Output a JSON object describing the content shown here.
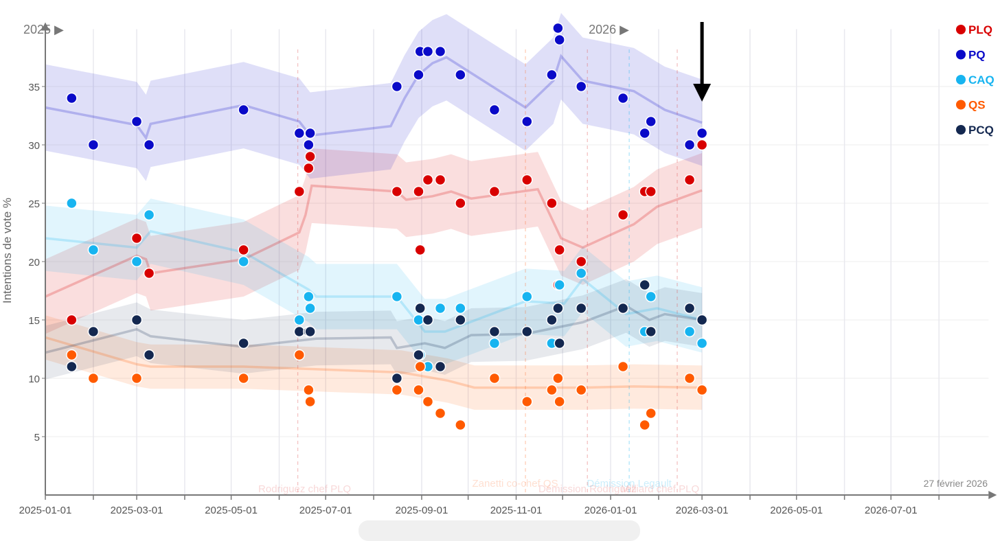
{
  "chart_data": {
    "type": "scatter",
    "title": "",
    "ylabel": "Intentions de vote %",
    "xlabel": "",
    "x_unit": "days since 2025-01-01",
    "xlim": [
      0,
      609
    ],
    "ylim": [
      0,
      40.5
    ],
    "grid": true,
    "legend_position": "top-right",
    "current_date_label": "27 février 2026",
    "year_markers": [
      {
        "x": 0,
        "label": "2025"
      },
      {
        "x": 365,
        "label": "2026"
      }
    ],
    "x_ticks": [
      {
        "x": 0,
        "label": "2025-01-01"
      },
      {
        "x": 59,
        "label": "2025-03-01"
      },
      {
        "x": 120,
        "label": "2025-05-01"
      },
      {
        "x": 181,
        "label": "2025-07-01"
      },
      {
        "x": 243,
        "label": "2025-09-01"
      },
      {
        "x": 304,
        "label": "2025-11-01"
      },
      {
        "x": 365,
        "label": "2026-01-01"
      },
      {
        "x": 424,
        "label": "2026-03-01"
      },
      {
        "x": 485,
        "label": "2026-05-01"
      },
      {
        "x": 546,
        "label": "2026-07-01"
      }
    ],
    "minor_ticks": [
      31,
      90,
      151,
      212,
      273,
      334,
      396,
      455,
      516,
      577
    ],
    "y_ticks": [
      5,
      10,
      15,
      20,
      25,
      30,
      35
    ],
    "annotations": [
      {
        "x": 163,
        "label": "Rodriguez chef PLQ",
        "color": "#e05050"
      },
      {
        "x": 310,
        "label": "Zanetti co-chef QS",
        "color": "#ff7030"
      },
      {
        "x": 350,
        "label": "Démission Rodriguez",
        "color": "#e05050"
      },
      {
        "x": 377,
        "label": "Démission Legault",
        "color": "#17b4f0"
      },
      {
        "x": 408,
        "label": "Milliard chef PLQ",
        "color": "#e05050"
      }
    ],
    "marker_arrow_x": 424,
    "series": [
      {
        "name": "PLQ",
        "color": "#d80000",
        "band": 3.2,
        "points": [
          [
            17,
            15
          ],
          [
            59,
            22
          ],
          [
            67,
            19
          ],
          [
            128,
            21
          ],
          [
            164,
            26
          ],
          [
            170,
            28
          ],
          [
            171,
            29
          ],
          [
            227,
            26
          ],
          [
            241,
            26
          ],
          [
            242,
            21
          ],
          [
            247,
            27
          ],
          [
            255,
            27
          ],
          [
            268,
            25
          ],
          [
            290,
            26
          ],
          [
            311,
            27
          ],
          [
            327,
            25
          ],
          [
            331,
            18
          ],
          [
            332,
            21
          ],
          [
            346,
            20
          ],
          [
            373,
            24
          ],
          [
            387,
            26
          ],
          [
            391,
            26
          ],
          [
            416,
            27
          ],
          [
            424,
            30
          ]
        ],
        "trend": [
          [
            0,
            17
          ],
          [
            59,
            20.5
          ],
          [
            65,
            20.2
          ],
          [
            68,
            19
          ],
          [
            128,
            20.2
          ],
          [
            164,
            22.5
          ],
          [
            168,
            24
          ],
          [
            172,
            26.5
          ],
          [
            227,
            26
          ],
          [
            233,
            25.3
          ],
          [
            250,
            25.6
          ],
          [
            262,
            26
          ],
          [
            275,
            25.4
          ],
          [
            318,
            26.2
          ],
          [
            333,
            22
          ],
          [
            347,
            21.2
          ],
          [
            380,
            23.2
          ],
          [
            395,
            24.7
          ],
          [
            424,
            26.1
          ]
        ]
      },
      {
        "name": "PQ",
        "color": "#0a0ac8",
        "band": 3.7,
        "points": [
          [
            17,
            34
          ],
          [
            31,
            30
          ],
          [
            59,
            32
          ],
          [
            67,
            30
          ],
          [
            128,
            33
          ],
          [
            164,
            31
          ],
          [
            170,
            30
          ],
          [
            171,
            31
          ],
          [
            227,
            35
          ],
          [
            241,
            36
          ],
          [
            242,
            38
          ],
          [
            247,
            38
          ],
          [
            255,
            38
          ],
          [
            268,
            36
          ],
          [
            290,
            33
          ],
          [
            311,
            32
          ],
          [
            327,
            36
          ],
          [
            331,
            40
          ],
          [
            332,
            39
          ],
          [
            346,
            35
          ],
          [
            373,
            34
          ],
          [
            387,
            31
          ],
          [
            391,
            32
          ],
          [
            416,
            30
          ],
          [
            424,
            31
          ]
        ],
        "trend": [
          [
            0,
            33.2
          ],
          [
            59,
            31.7
          ],
          [
            65,
            30.6
          ],
          [
            68,
            31.8
          ],
          [
            128,
            33.4
          ],
          [
            164,
            32
          ],
          [
            171,
            30.8
          ],
          [
            223,
            31.6
          ],
          [
            232,
            34
          ],
          [
            241,
            36
          ],
          [
            250,
            37
          ],
          [
            259,
            37.5
          ],
          [
            310,
            33.2
          ],
          [
            328,
            35.5
          ],
          [
            333,
            37.6
          ],
          [
            347,
            35.5
          ],
          [
            380,
            34.6
          ],
          [
            400,
            33
          ],
          [
            424,
            31.9
          ]
        ]
      },
      {
        "name": "CAQ",
        "color": "#17b4f0",
        "band": 2.8,
        "points": [
          [
            17,
            25
          ],
          [
            31,
            21
          ],
          [
            59,
            20
          ],
          [
            67,
            24
          ],
          [
            128,
            20
          ],
          [
            164,
            15
          ],
          [
            170,
            17
          ],
          [
            171,
            16
          ],
          [
            227,
            17
          ],
          [
            241,
            15
          ],
          [
            242,
            12
          ],
          [
            247,
            11
          ],
          [
            255,
            16
          ],
          [
            268,
            16
          ],
          [
            290,
            13
          ],
          [
            311,
            17
          ],
          [
            327,
            13
          ],
          [
            332,
            18
          ],
          [
            346,
            19
          ],
          [
            373,
            11
          ],
          [
            387,
            14
          ],
          [
            391,
            17
          ],
          [
            416,
            14
          ],
          [
            424,
            13
          ]
        ],
        "trend": [
          [
            0,
            22
          ],
          [
            59,
            21.2
          ],
          [
            68,
            22.6
          ],
          [
            128,
            20.8
          ],
          [
            170,
            17.6
          ],
          [
            175,
            17
          ],
          [
            227,
            17
          ],
          [
            245,
            14
          ],
          [
            258,
            14
          ],
          [
            310,
            16.6
          ],
          [
            335,
            16.4
          ],
          [
            347,
            18.5
          ],
          [
            375,
            15.5
          ],
          [
            395,
            16
          ],
          [
            424,
            15
          ]
        ]
      },
      {
        "name": "QS",
        "color": "#ff5a00",
        "band": 1.9,
        "points": [
          [
            17,
            12
          ],
          [
            31,
            10
          ],
          [
            59,
            10
          ],
          [
            128,
            10
          ],
          [
            164,
            12
          ],
          [
            170,
            9
          ],
          [
            171,
            8
          ],
          [
            227,
            9
          ],
          [
            241,
            9
          ],
          [
            242,
            11
          ],
          [
            247,
            8
          ],
          [
            255,
            7
          ],
          [
            268,
            6
          ],
          [
            290,
            10
          ],
          [
            311,
            8
          ],
          [
            327,
            9
          ],
          [
            331,
            10
          ],
          [
            332,
            8
          ],
          [
            346,
            9
          ],
          [
            373,
            11
          ],
          [
            387,
            6
          ],
          [
            391,
            7
          ],
          [
            416,
            10
          ],
          [
            424,
            9
          ]
        ],
        "trend": [
          [
            0,
            13.5
          ],
          [
            59,
            11.2
          ],
          [
            68,
            11
          ],
          [
            128,
            11
          ],
          [
            170,
            10.8
          ],
          [
            230,
            10.5
          ],
          [
            260,
            9.8
          ],
          [
            277,
            9.2
          ],
          [
            347,
            9.2
          ],
          [
            380,
            9.3
          ],
          [
            424,
            9.2
          ]
        ]
      },
      {
        "name": "PCQ",
        "color": "#142850",
        "band": 2.3,
        "points": [
          [
            17,
            11
          ],
          [
            31,
            14
          ],
          [
            59,
            15
          ],
          [
            67,
            12
          ],
          [
            128,
            13
          ],
          [
            164,
            14
          ],
          [
            170,
            14
          ],
          [
            171,
            14
          ],
          [
            227,
            10
          ],
          [
            241,
            12
          ],
          [
            242,
            16
          ],
          [
            247,
            15
          ],
          [
            255,
            11
          ],
          [
            268,
            15
          ],
          [
            290,
            14
          ],
          [
            311,
            14
          ],
          [
            327,
            15
          ],
          [
            331,
            16
          ],
          [
            332,
            13
          ],
          [
            346,
            16
          ],
          [
            373,
            16
          ],
          [
            387,
            18
          ],
          [
            391,
            14
          ],
          [
            416,
            16
          ],
          [
            424,
            15
          ]
        ],
        "trend": [
          [
            0,
            12.2
          ],
          [
            59,
            14.2
          ],
          [
            68,
            13.6
          ],
          [
            128,
            12.7
          ],
          [
            175,
            13.4
          ],
          [
            223,
            13.5
          ],
          [
            227,
            12.6
          ],
          [
            245,
            13
          ],
          [
            258,
            12.6
          ],
          [
            275,
            13.7
          ],
          [
            310,
            13.8
          ],
          [
            347,
            14.8
          ],
          [
            375,
            16.2
          ],
          [
            390,
            15
          ],
          [
            400,
            15.5
          ],
          [
            424,
            15
          ]
        ]
      }
    ]
  }
}
